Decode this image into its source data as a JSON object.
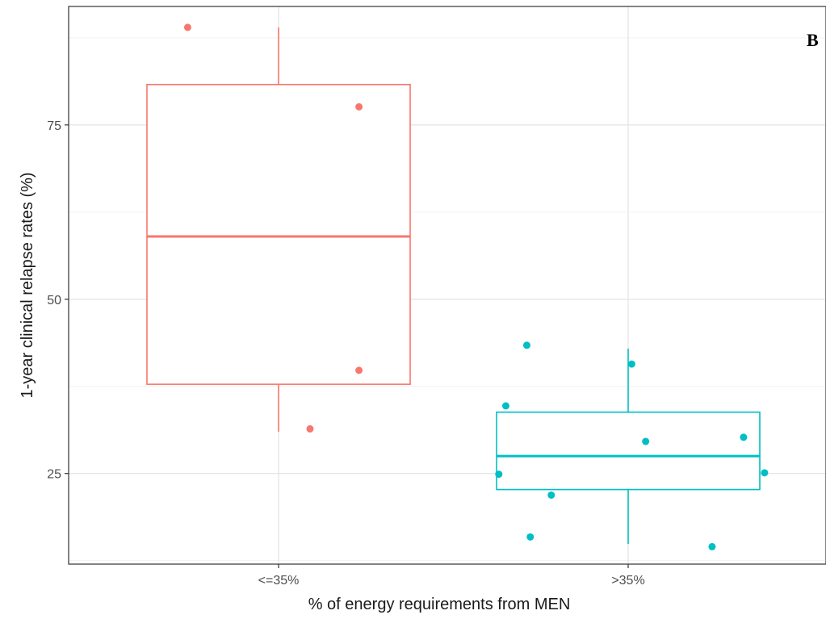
{
  "chart_data": {
    "type": "box",
    "panel_label": "B",
    "xlabel": "% of energy requirements from MEN",
    "ylabel": "1-year clinical relapse rates (%)",
    "ylim": [
      12,
      92
    ],
    "y_ticks": [
      25,
      50,
      75
    ],
    "categories": [
      "<=35%",
      ">35%"
    ],
    "groups": [
      {
        "category": "<=35%",
        "color": "#f8766d",
        "whisker_low": 31.0,
        "q1": 37.8,
        "median": 59.0,
        "q3": 80.8,
        "whisker_high": 89.0,
        "points": [
          {
            "x_jitter": -0.26,
            "y": 89.0
          },
          {
            "x_jitter": 0.23,
            "y": 77.6
          },
          {
            "x_jitter": 0.23,
            "y": 39.8
          },
          {
            "x_jitter": 0.09,
            "y": 31.4
          }
        ]
      },
      {
        "category": ">35%",
        "color": "#00bfc4",
        "whisker_low": 14.9,
        "q1": 22.7,
        "median": 27.5,
        "q3": 33.8,
        "whisker_high": 42.9,
        "points": [
          {
            "x_jitter": -0.28,
            "y": 15.9
          },
          {
            "x_jitter": -0.37,
            "y": 24.9
          },
          {
            "x_jitter": -0.35,
            "y": 34.7
          },
          {
            "x_jitter": -0.29,
            "y": 43.4
          },
          {
            "x_jitter": -0.22,
            "y": 21.9
          },
          {
            "x_jitter": 0.01,
            "y": 40.7
          },
          {
            "x_jitter": 0.05,
            "y": 29.6
          },
          {
            "x_jitter": 0.24,
            "y": 14.5
          },
          {
            "x_jitter": 0.33,
            "y": 30.2
          },
          {
            "x_jitter": 0.39,
            "y": 25.1
          }
        ]
      }
    ],
    "grid": true
  }
}
